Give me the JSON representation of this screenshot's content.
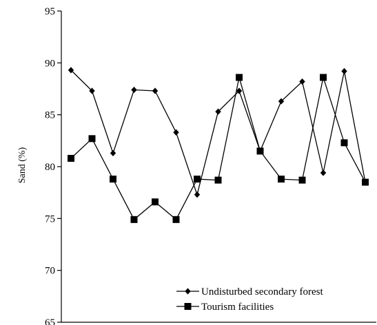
{
  "chart_data": {
    "type": "line",
    "title": "",
    "xlabel": "",
    "ylabel": "Sand (%)",
    "ylim": [
      65,
      95
    ],
    "yticks": [
      65,
      70,
      75,
      80,
      85,
      90,
      95
    ],
    "ytick_labels": [
      "65",
      "70",
      "75",
      "80",
      "85",
      "90",
      "95"
    ],
    "x": [
      1,
      2,
      3,
      4,
      5,
      6,
      7,
      8,
      9,
      10,
      11,
      12,
      13,
      14,
      15
    ],
    "grid": false,
    "legend_position": "bottom-right",
    "series": [
      {
        "name": "Undisturbed secondary forest",
        "marker": "diamond",
        "color": "#000000",
        "values": [
          89.3,
          87.3,
          81.3,
          87.4,
          87.3,
          83.3,
          77.3,
          85.3,
          87.3,
          81.5,
          86.3,
          88.2,
          79.4,
          89.2,
          78.5
        ]
      },
      {
        "name": "Tourism facilities",
        "marker": "square",
        "color": "#000000",
        "values": [
          80.8,
          82.7,
          78.8,
          74.9,
          76.6,
          74.9,
          78.8,
          78.7,
          88.6,
          81.5,
          78.8,
          78.7,
          88.6,
          82.3,
          78.5
        ]
      }
    ]
  }
}
